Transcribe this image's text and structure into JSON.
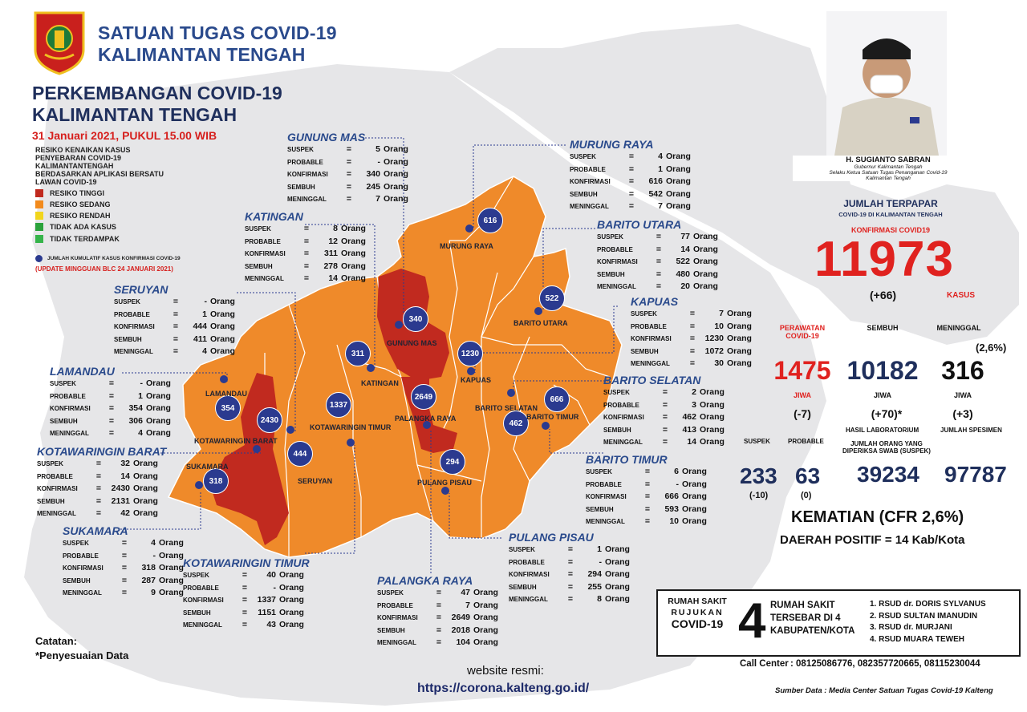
{
  "header": {
    "org_line1": "SATUAN TUGAS COVID-19",
    "org_line2": "KALIMANTAN TENGAH",
    "title_line1": "PERKEMBANGAN COVID-19",
    "title_line2": "KALIMANTAN TENGAH",
    "date": "31 Januari 2021, PUKUL 15.00 WIB"
  },
  "legend": {
    "title": "RESIKO KENAIKAN KASUS PENYEBARAN COVID-19 KALIMANTANTENGAH BERDASARKAN APLIKASI BERSATU LAWAN COVID-19",
    "items": [
      {
        "label": "RESIKO TINGGI",
        "color": "#c0291e"
      },
      {
        "label": "RESIKO SEDANG",
        "color": "#f28a1c"
      },
      {
        "label": "RESIKO RENDAH",
        "color": "#f1d51c"
      },
      {
        "label": "TIDAK ADA KASUS",
        "color": "#2aa23b"
      },
      {
        "label": "TIDAK TERDAMPAK",
        "color": "#35b44a"
      }
    ],
    "dot_label": "JUMLAH KUMULATIF KASUS KONFIRMASI COVID-19",
    "update": "(UPDATE MINGGUAN BLC 24 JANUARI 2021)"
  },
  "labels": {
    "suspek": "SUSPEK",
    "probable": "PROBABLE",
    "konfirmasi": "KONFIRMASI",
    "sembuh": "SEMBUH",
    "meninggal": "MENINGGAL",
    "eq": "=",
    "unit": "Orang"
  },
  "regions": [
    {
      "name": "GUNUNG MAS",
      "map_name": "GUNUNG MAS",
      "suspek": "5",
      "probable": "-",
      "konfirmasi": "340",
      "sembuh": "245",
      "meninggal": "7"
    },
    {
      "name": "MURUNG RAYA",
      "map_name": "MURUNG RAYA",
      "suspek": "4",
      "probable": "1",
      "konfirmasi": "616",
      "sembuh": "542",
      "meninggal": "7"
    },
    {
      "name": "KATINGAN",
      "map_name": "KATINGAN",
      "suspek": "8",
      "probable": "12",
      "konfirmasi": "311",
      "sembuh": "278",
      "meninggal": "14"
    },
    {
      "name": "BARITO UTARA",
      "map_name": "BARITO UTARA",
      "suspek": "77",
      "probable": "14",
      "konfirmasi": "522",
      "sembuh": "480",
      "meninggal": "20"
    },
    {
      "name": "SERUYAN",
      "map_name": "SERUYAN",
      "suspek": "-",
      "probable": "1",
      "konfirmasi": "444",
      "sembuh": "411",
      "meninggal": "4"
    },
    {
      "name": "KAPUAS",
      "map_name": "KAPUAS",
      "suspek": "7",
      "probable": "10",
      "konfirmasi": "1230",
      "sembuh": "1072",
      "meninggal": "30"
    },
    {
      "name": "LAMANDAU",
      "map_name": "LAMANDAU",
      "suspek": "-",
      "probable": "1",
      "konfirmasi": "354",
      "sembuh": "306",
      "meninggal": "4"
    },
    {
      "name": "BARITO SELATAN",
      "map_name": "BARITO SELATAN",
      "suspek": "2",
      "probable": "3",
      "konfirmasi": "462",
      "sembuh": "413",
      "meninggal": "14"
    },
    {
      "name": "KOTAWARINGIN BARAT",
      "map_name": "KOTAWARINGIN BARAT",
      "suspek": "32",
      "probable": "14",
      "konfirmasi": "2430",
      "sembuh": "2131",
      "meninggal": "42"
    },
    {
      "name": "BARITO TIMUR",
      "map_name": "BARITO TIMUR",
      "suspek": "6",
      "probable": "-",
      "konfirmasi": "666",
      "sembuh": "593",
      "meninggal": "10"
    },
    {
      "name": "SUKAMARA",
      "map_name": "SUKAMARA",
      "suspek": "4",
      "probable": "-",
      "konfirmasi": "318",
      "sembuh": "287",
      "meninggal": "9"
    },
    {
      "name": "KOTAWARINGIN TIMUR",
      "map_name": "KOTAWARINGIN TIMUR",
      "suspek": "40",
      "probable": "-",
      "konfirmasi": "1337",
      "sembuh": "1151",
      "meninggal": "43"
    },
    {
      "name": "PULANG PISAU",
      "map_name": "PULANG PISAU",
      "suspek": "1",
      "probable": "-",
      "konfirmasi": "294",
      "sembuh": "255",
      "meninggal": "8"
    },
    {
      "name": "PALANGKA RAYA",
      "map_name": "PALANGKA RAYA",
      "suspek": "47",
      "probable": "7",
      "konfirmasi": "2649",
      "sembuh": "2018",
      "meninggal": "104"
    }
  ],
  "governor": {
    "name": "H. SUGIANTO SABRAN",
    "title1": "Gubernur Kalimantan Tengah",
    "title2": "Selaku Ketua Satuan Tugas Penanganan Covid-19",
    "title3": "Kalimantan Tengah"
  },
  "summary": {
    "title": "JUMLAH TERPAPAR",
    "subtitle": "COVID-19 DI KALIMANTAN TENGAH",
    "konfirmasi_label": "KONFIRMASI COVID19",
    "konfirmasi": "11973",
    "konfirmasi_delta": "(+66)",
    "kasus": "KASUS",
    "perawatan_label": "PERAWATAN COVID-19",
    "sembuh_label": "SEMBUH",
    "meninggal_label": "MENINGGAL",
    "meninggal_pct": "(2,6%)",
    "perawatan": "1475",
    "sembuh": "10182",
    "meninggal": "316",
    "jiwa": "JIWA",
    "perawatan_delta": "(-7)",
    "sembuh_delta": "(+70)*",
    "meninggal_delta": "(+3)",
    "suspek_label": "SUSPEK",
    "probable_label": "PROBABLE",
    "lab_label": "HASIL LABORATORIUM",
    "spesimen_label": "JUMLAH SPESIMEN",
    "swab_label1": "JUMLAH ORANG YANG",
    "swab_label2": "DIPERIKSA SWAB (SUSPEK)",
    "suspek": "233",
    "suspek_delta": "(-10)",
    "probable": "63",
    "probable_delta": "(0)",
    "swab": "39234",
    "spesimen": "97787",
    "cfr": "KEMATIAN (CFR 2,6%)",
    "daerah": "DAERAH POSITIF = 14 Kab/Kota"
  },
  "hospital": {
    "label1": "RUMAH SAKIT",
    "label2": "RUJUKAN",
    "label3": "COVID-19",
    "count": "4",
    "desc1": "RUMAH SAKIT",
    "desc2": "TERSEBAR DI 4",
    "desc3": "KABUPATEN/KOTA",
    "list": [
      "1. RSUD dr. DORIS SYLVANUS",
      "2. RSUD SULTAN IMANUDIN",
      "3. RSUD dr. MURJANI",
      "4. RSUD MUARA TEWEH"
    ]
  },
  "footer": {
    "call_label": "Call Center",
    "call_numbers": ": 08125086776, 082357720665, 08115230044",
    "source": "Sumber Data : Media Center Satuan Tugas Covid-19 Kalteng",
    "note_title": "Catatan:",
    "note": "*Penyesuaian Data",
    "website_label": "website resmi:",
    "website": "https://corona.kalteng.go.id/"
  },
  "dots": [
    {
      "region": "MURUNG RAYA",
      "value": "616"
    },
    {
      "region": "GUNUNG MAS",
      "value": "340"
    },
    {
      "region": "BARITO UTARA",
      "value": "522"
    },
    {
      "region": "KATINGAN",
      "value": "311"
    },
    {
      "region": "KAPUAS",
      "value": "1230"
    },
    {
      "region": "LAMANDAU",
      "value": "354"
    },
    {
      "region": "KOTAWARINGIN BARAT",
      "value": "2430"
    },
    {
      "region": "KOTAWARINGIN TIMUR",
      "value": "1337"
    },
    {
      "region": "PALANGKA RAYA",
      "value": "2649"
    },
    {
      "region": "BARITO SELATAN",
      "value": "462"
    },
    {
      "region": "BARITO TIMUR",
      "value": "666"
    },
    {
      "region": "SERUYAN",
      "value": "444"
    },
    {
      "region": "PULANG PISAU",
      "value": "294"
    },
    {
      "region": "SUKAMARA",
      "value": "318"
    }
  ]
}
